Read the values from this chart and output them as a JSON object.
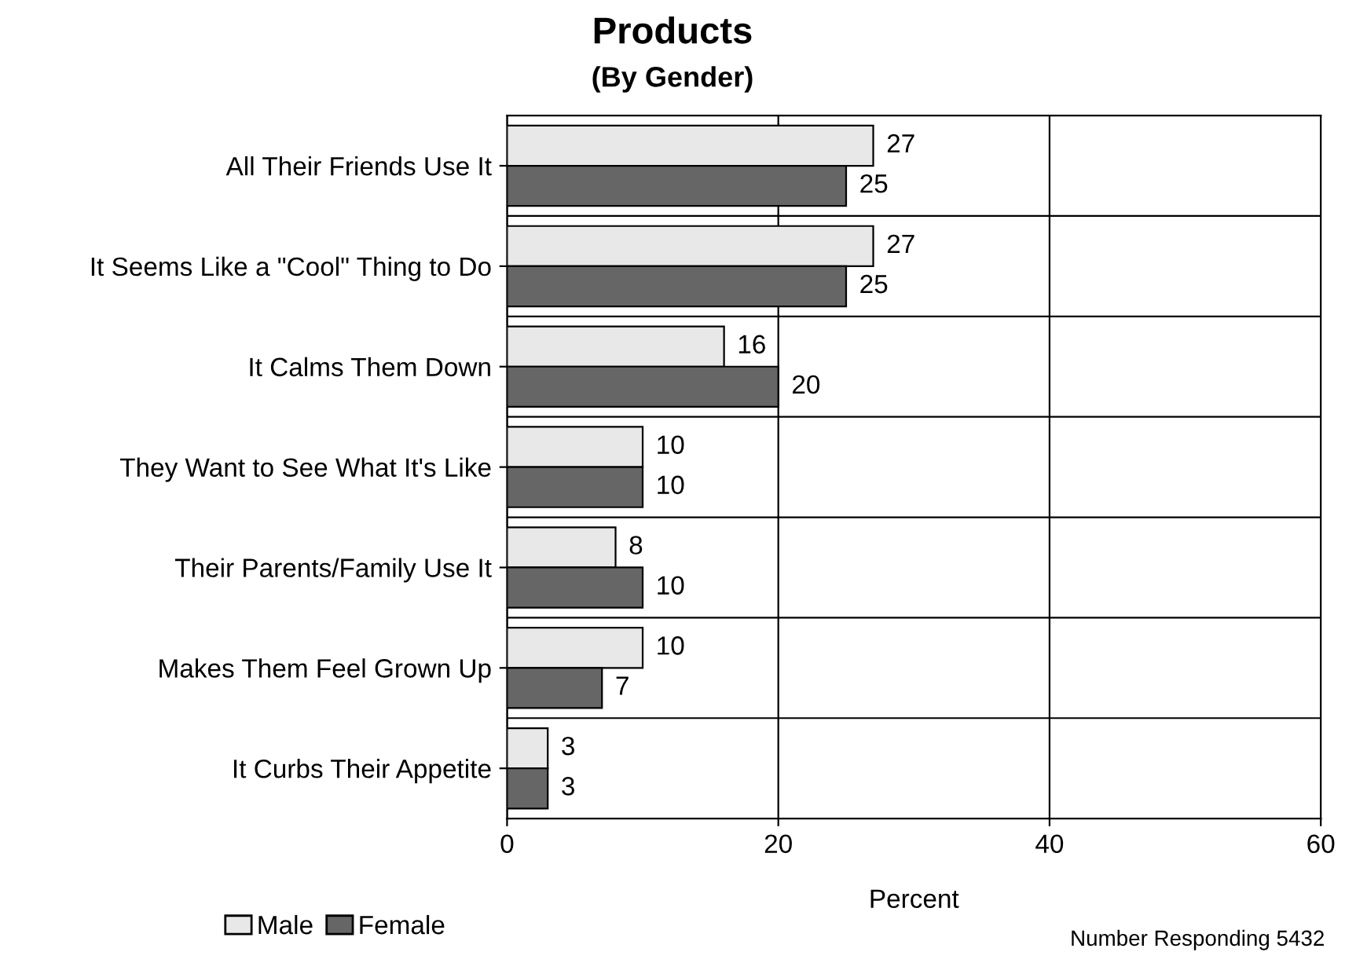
{
  "chart_data": {
    "type": "bar",
    "orientation": "horizontal",
    "title": "Products",
    "subtitle": "(By Gender)",
    "xlabel": "Percent",
    "categories": [
      "All Their Friends Use It",
      "It Seems Like a \"Cool\" Thing to Do",
      "It Calms Them Down",
      "They Want to See What It's Like",
      "Their Parents/Family Use It",
      "Makes Them Feel Grown Up",
      "It Curbs Their Appetite"
    ],
    "series": [
      {
        "name": "Male",
        "color": "#e8e8e8",
        "values": [
          27,
          27,
          16,
          10,
          8,
          10,
          3
        ]
      },
      {
        "name": "Female",
        "color": "#666666",
        "values": [
          25,
          25,
          20,
          10,
          10,
          7,
          3
        ]
      }
    ],
    "xlim": [
      0,
      60
    ],
    "xticks": [
      0,
      20,
      40,
      60
    ],
    "grid": "x",
    "data_labels": true,
    "legend": "bottom left",
    "annotations": [
      "Number Responding 5432"
    ]
  }
}
